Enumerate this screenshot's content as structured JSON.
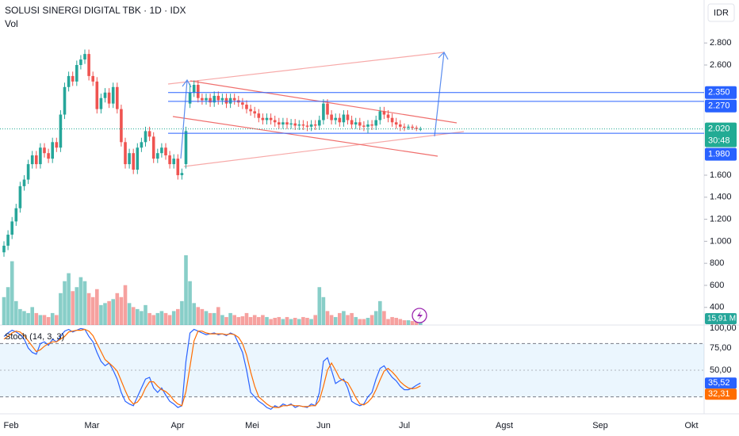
{
  "chart_data": [
    {
      "type": "candlestick",
      "title": "SOLUSI SINERGI DIGITAL TBK · 1D · IDX",
      "currency": "IDR",
      "up_color": "#26a69a",
      "down_color": "#ef5350",
      "open": [
        900,
        960,
        1060,
        1180,
        1300,
        1500,
        1560,
        1700,
        1780,
        1700,
        1850,
        1800,
        1750,
        1900,
        1850,
        2150,
        2400,
        2500,
        2450,
        2600,
        2650,
        2700,
        2500,
        2450,
        2200,
        2300,
        2350,
        2250,
        2400,
        2200,
        1900,
        1700,
        1800,
        1650,
        1850,
        1900,
        2000,
        1950,
        1750,
        1800,
        1850,
        1780,
        1700,
        1750,
        1600,
        1700,
        2250,
        2350,
        2420,
        2300,
        2280,
        2300,
        2260,
        2320,
        2280,
        2300,
        2250,
        2300,
        2280,
        2260,
        2240,
        2200,
        2180,
        2160,
        2120,
        2100,
        2120,
        2100,
        2080,
        2060,
        2080,
        2060,
        2070,
        2050,
        2060,
        2050,
        2040,
        2060,
        2050,
        2100,
        2250,
        2150,
        2100,
        2120,
        2080,
        2150,
        2100,
        2060,
        2080,
        2050,
        2040,
        2060,
        2050,
        2100,
        2180,
        2150,
        2120,
        2080,
        2060,
        2040,
        2030,
        2040,
        2030,
        2020
      ],
      "high": [
        1000,
        1100,
        1220,
        1340,
        1540,
        1600,
        1740,
        1820,
        1820,
        1890,
        1890,
        1840,
        1940,
        1940,
        2190,
        2440,
        2540,
        2540,
        2640,
        2690,
        2740,
        2740,
        2540,
        2490,
        2340,
        2390,
        2390,
        2440,
        2440,
        2240,
        1940,
        1840,
        1840,
        1890,
        1940,
        2040,
        2040,
        1990,
        1840,
        1890,
        1890,
        1820,
        1790,
        1790,
        1660,
        2040,
        2430,
        2460,
        2460,
        2340,
        2340,
        2340,
        2360,
        2360,
        2340,
        2340,
        2340,
        2340,
        2320,
        2300,
        2280,
        2240,
        2220,
        2200,
        2160,
        2160,
        2160,
        2140,
        2120,
        2120,
        2120,
        2110,
        2110,
        2100,
        2100,
        2090,
        2100,
        2100,
        2140,
        2290,
        2290,
        2190,
        2160,
        2160,
        2190,
        2190,
        2140,
        2120,
        2120,
        2090,
        2100,
        2100,
        2140,
        2220,
        2220,
        2190,
        2160,
        2120,
        2100,
        2070,
        2060,
        2060,
        2050,
        2040
      ],
      "low": [
        860,
        920,
        1020,
        1140,
        1260,
        1460,
        1520,
        1660,
        1660,
        1660,
        1760,
        1710,
        1710,
        1810,
        1810,
        2110,
        2360,
        2410,
        2410,
        2560,
        2610,
        2460,
        2410,
        2160,
        2160,
        2260,
        2210,
        2210,
        2160,
        1860,
        1660,
        1660,
        1610,
        1610,
        1810,
        1860,
        1910,
        1710,
        1710,
        1760,
        1740,
        1660,
        1660,
        1560,
        1560,
        1660,
        2210,
        2310,
        2260,
        2240,
        2240,
        2220,
        2220,
        2240,
        2240,
        2210,
        2210,
        2240,
        2220,
        2200,
        2160,
        2140,
        2120,
        2080,
        2060,
        2060,
        2060,
        2040,
        2020,
        2020,
        2020,
        2020,
        2010,
        2010,
        2010,
        2000,
        2000,
        2010,
        2010,
        2060,
        2110,
        2060,
        2060,
        2040,
        2040,
        2060,
        2020,
        2020,
        2010,
        2000,
        1980,
        2010,
        2010,
        2060,
        2110,
        2080,
        2040,
        2020,
        2000,
        2000,
        2010,
        2010,
        2000,
        2000
      ],
      "close": [
        960,
        1060,
        1180,
        1300,
        1500,
        1560,
        1700,
        1780,
        1700,
        1850,
        1800,
        1750,
        1900,
        1850,
        2150,
        2400,
        2500,
        2450,
        2600,
        2650,
        2700,
        2500,
        2450,
        2200,
        2300,
        2350,
        2250,
        2400,
        2200,
        1900,
        1700,
        1800,
        1650,
        1850,
        1900,
        2000,
        1950,
        1750,
        1800,
        1850,
        1780,
        1700,
        1750,
        1600,
        1620,
        2000,
        2350,
        2420,
        2300,
        2280,
        2300,
        2260,
        2320,
        2280,
        2300,
        2250,
        2300,
        2280,
        2260,
        2240,
        2200,
        2180,
        2160,
        2120,
        2100,
        2120,
        2100,
        2080,
        2060,
        2080,
        2060,
        2070,
        2050,
        2060,
        2050,
        2040,
        2060,
        2050,
        2100,
        2250,
        2150,
        2100,
        2120,
        2080,
        2150,
        2100,
        2060,
        2080,
        2050,
        2040,
        2060,
        2050,
        2100,
        2180,
        2150,
        2120,
        2080,
        2060,
        2040,
        2030,
        2040,
        2030,
        2020,
        2020
      ],
      "ylim": [
        240,
        3190
      ],
      "yticks": [
        {
          "value": 2800,
          "label": "2.800"
        },
        {
          "value": 2600,
          "label": "2.600"
        },
        {
          "value": 1600,
          "label": "1.600"
        },
        {
          "value": 1400,
          "label": "1.400"
        },
        {
          "value": 1200,
          "label": "1.200"
        },
        {
          "value": 1000,
          "label": "1.000"
        },
        800,
        600,
        400
      ],
      "price_labels": [
        {
          "value": 2350,
          "label": "2.350",
          "color": "#2962ff"
        },
        {
          "value": 2270,
          "label": "2.270",
          "color": "#2962ff"
        },
        {
          "value": 2020,
          "label": "2.020",
          "color": "#22ab94",
          "countdown": "30:48"
        },
        {
          "value": 1980,
          "label": "1.980",
          "color": "#2962ff"
        }
      ]
    },
    {
      "type": "bar",
      "title": "Vol",
      "values": [
        70,
        95,
        160,
        60,
        40,
        35,
        30,
        45,
        30,
        25,
        25,
        20,
        30,
        25,
        80,
        110,
        130,
        85,
        95,
        120,
        110,
        80,
        70,
        90,
        50,
        55,
        60,
        65,
        80,
        70,
        100,
        55,
        45,
        40,
        35,
        50,
        30,
        25,
        30,
        35,
        30,
        25,
        35,
        40,
        60,
        175,
        110,
        55,
        45,
        40,
        35,
        30,
        30,
        45,
        25,
        20,
        30,
        25,
        20,
        22,
        30,
        20,
        25,
        20,
        25,
        20,
        15,
        18,
        20,
        15,
        20,
        15,
        18,
        15,
        20,
        18,
        15,
        25,
        95,
        70,
        35,
        25,
        20,
        30,
        35,
        25,
        30,
        20,
        15,
        15,
        18,
        25,
        35,
        60,
        35,
        15,
        20,
        18,
        15,
        12,
        12,
        10,
        10,
        15.91
      ],
      "last_label": {
        "value": 15.91,
        "label": "15,91 M"
      }
    },
    {
      "type": "line",
      "title": "Stoch (14, 3, 3)",
      "series": [
        {
          "name": "%K",
          "color": "#2962ff",
          "label": {
            "value": 35.52,
            "label": "35,52"
          },
          "values": [
            88,
            92,
            95,
            93,
            90,
            85,
            75,
            70,
            68,
            80,
            82,
            78,
            85,
            82,
            88,
            94,
            96,
            93,
            95,
            97,
            96,
            88,
            82,
            70,
            60,
            55,
            58,
            50,
            40,
            25,
            15,
            12,
            10,
            20,
            30,
            40,
            42,
            30,
            25,
            30,
            22,
            15,
            12,
            8,
            10,
            60,
            92,
            96,
            94,
            92,
            90,
            91,
            92,
            90,
            91,
            89,
            92,
            90,
            80,
            70,
            50,
            25,
            20,
            15,
            12,
            8,
            6,
            10,
            8,
            12,
            10,
            12,
            8,
            10,
            9,
            8,
            12,
            10,
            25,
            60,
            64,
            50,
            35,
            38,
            40,
            30,
            15,
            12,
            10,
            12,
            20,
            25,
            40,
            52,
            55,
            48,
            42,
            38,
            32,
            28,
            28,
            30,
            33,
            35.52
          ]
        },
        {
          "name": "%D",
          "color": "#ff6d00",
          "label": {
            "value": 32.31,
            "label": "32,31"
          },
          "values": [
            85,
            88,
            92,
            94,
            93,
            89,
            83,
            77,
            71,
            73,
            77,
            80,
            82,
            82,
            85,
            88,
            93,
            94,
            95,
            95,
            96,
            94,
            89,
            80,
            71,
            62,
            58,
            54,
            49,
            38,
            27,
            17,
            12,
            14,
            20,
            30,
            37,
            37,
            32,
            28,
            26,
            22,
            16,
            12,
            10,
            26,
            54,
            83,
            94,
            94,
            92,
            91,
            91,
            91,
            91,
            90,
            91,
            90,
            87,
            80,
            67,
            48,
            32,
            20,
            16,
            12,
            9,
            8,
            8,
            10,
            10,
            11,
            10,
            10,
            9,
            9,
            10,
            10,
            16,
            32,
            50,
            58,
            50,
            41,
            38,
            36,
            28,
            19,
            12,
            11,
            14,
            19,
            28,
            39,
            49,
            52,
            48,
            43,
            37,
            33,
            30,
            29,
            30,
            32.31
          ]
        }
      ],
      "ylim": [
        0,
        100
      ],
      "yticks": [
        {
          "value": 100,
          "label": "100,00"
        },
        {
          "value": 75,
          "label": "75,00"
        },
        {
          "value": 50,
          "label": "50,00"
        }
      ],
      "band": [
        20,
        80
      ],
      "x_labels": [
        "Feb",
        "Mar",
        "Apr",
        "Mei",
        "Jun",
        "Jul",
        "Agst",
        "Sep",
        "Okt"
      ]
    }
  ]
}
